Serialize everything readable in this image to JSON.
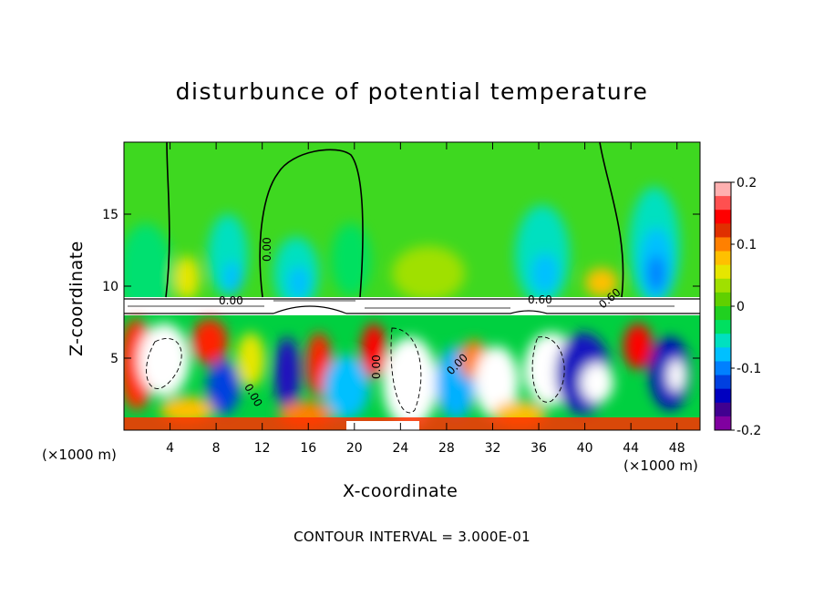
{
  "chart_data": {
    "type": "heatmap",
    "title": "disturbunce of potential temperature",
    "xlabel": "X-coordinate",
    "ylabel": "Z-coordinate",
    "x_unit": "(×1000 m)",
    "xlim": [
      0,
      50
    ],
    "ylim": [
      0,
      20
    ],
    "x_ticks": [
      4,
      8,
      12,
      16,
      20,
      24,
      28,
      32,
      36,
      40,
      44,
      48
    ],
    "y_ticks": [
      5,
      10,
      15
    ],
    "colorbar": {
      "ticks": [
        "0.2",
        "0.1",
        "0",
        "-0.1",
        "-0.2"
      ],
      "range": [
        -0.2,
        0.2
      ],
      "colors": [
        "#ffb0b0",
        "#ff5050",
        "#ff0000",
        "#e03000",
        "#ff8000",
        "#ffc000",
        "#e6e600",
        "#a0e000",
        "#60d000",
        "#20d020",
        "#00e060",
        "#00e0c0",
        "#00c0ff",
        "#0080ff",
        "#0040e0",
        "#0000c0",
        "#400090",
        "#8000a0"
      ]
    },
    "contour_interval_text": "CONTOUR INTERVAL = 3.000E-01",
    "contour_labels": [
      "0.00",
      "0.00",
      "0.00",
      "0.00",
      "0.00",
      "0.60",
      "0.60"
    ],
    "tropopause_height": 9
  }
}
